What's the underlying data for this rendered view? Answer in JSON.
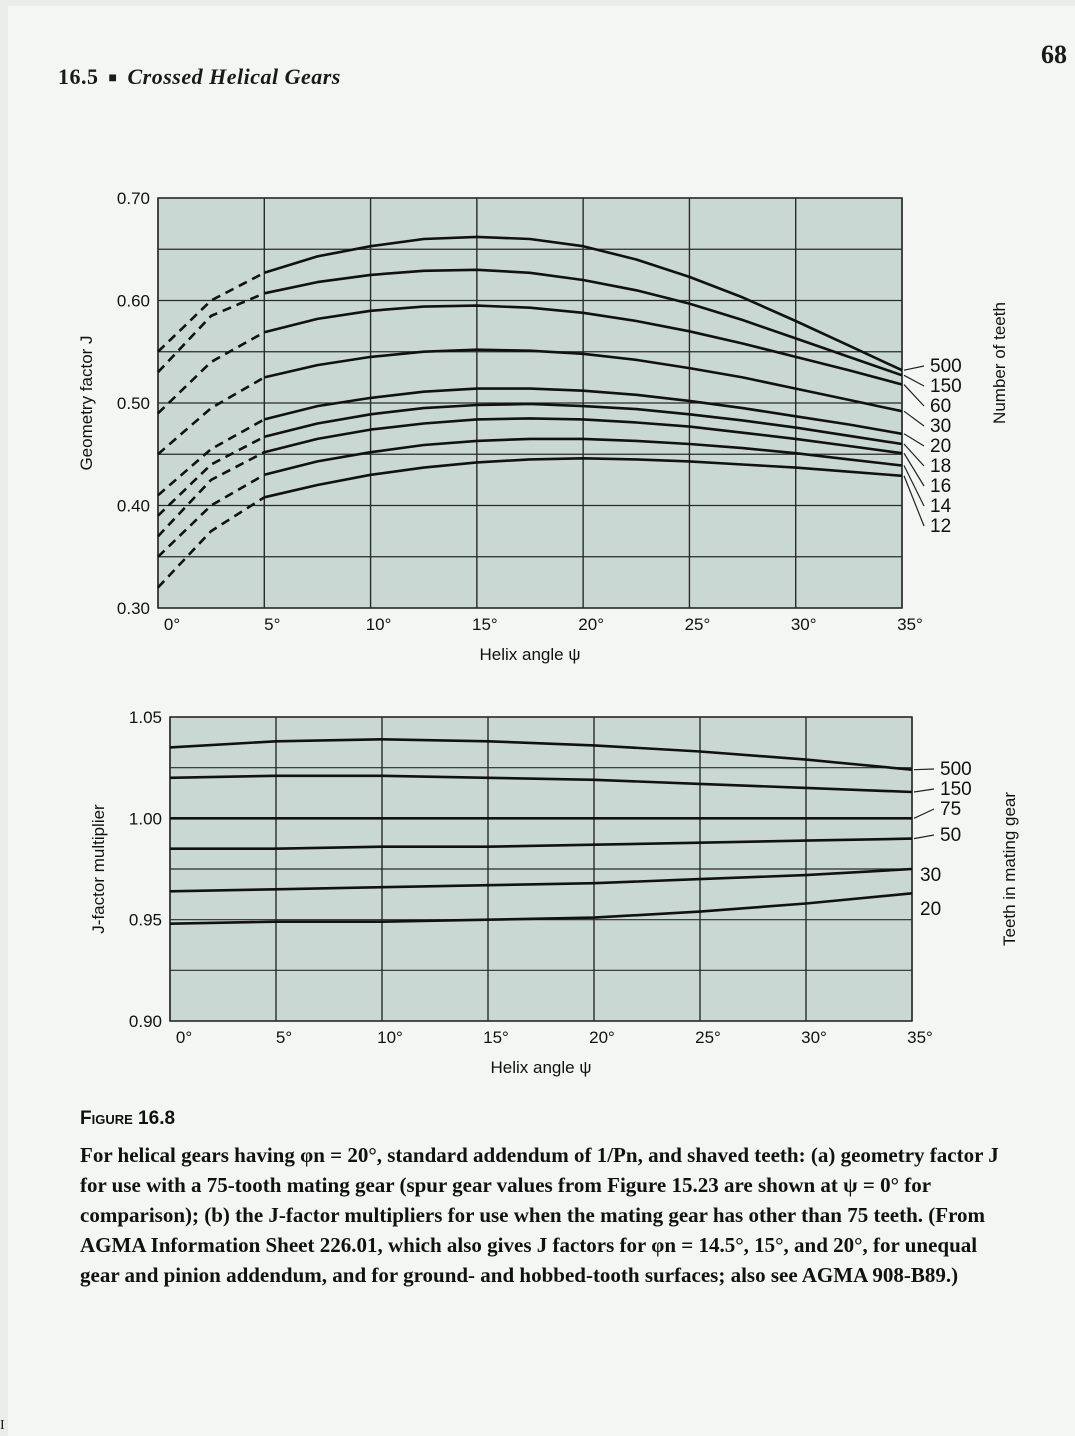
{
  "page": {
    "section_number": "16.5",
    "section_title": "Crossed Helical Gears",
    "page_number": "68",
    "corner_mark": "I"
  },
  "caption": {
    "label": "Figure 16.8",
    "text": "For helical gears having φn = 20°, standard addendum of 1/Pn, and shaved teeth: (a) geometry factor J for use with a 75-tooth mating gear (spur gear values from Figure 15.23 are shown at ψ = 0° for comparison); (b) the J-factor multipliers for use when the mating gear has other than 75 teeth. (From AGMA Information Sheet 226.01, which also gives J factors for φn = 14.5°, 15°, and 20°, for unequal gear and pinion addendum, and for ground- and hobbed-tooth surfaces; also see AGMA 908-B89.)"
  },
  "colors": {
    "plot_bg": "#c9d8d3",
    "grid": "#2a2a2a",
    "curve": "#111111"
  },
  "chart_data": [
    {
      "type": "line",
      "xlabel": "Helix angle ψ",
      "ylabel": "Geometry factor J",
      "right_label": "Number of teeth",
      "xlim": [
        0,
        35
      ],
      "ylim": [
        0.3,
        0.7
      ],
      "x_ticks": [
        0,
        5,
        10,
        15,
        20,
        25,
        30,
        35
      ],
      "x_tick_labels": [
        "0°",
        "5°",
        "10°",
        "15°",
        "20°",
        "25°",
        "30°",
        "35°"
      ],
      "y_ticks": [
        0.3,
        0.4,
        0.5,
        0.6,
        0.7
      ],
      "y_tick_labels": [
        "0.30",
        "0.40",
        "0.50",
        "0.60",
        "0.70"
      ],
      "grid": true,
      "dashed_start": 5,
      "x": [
        0,
        2.5,
        5,
        7.5,
        10,
        12.5,
        15,
        17.5,
        20,
        22.5,
        25,
        27.5,
        30,
        32.5,
        35
      ],
      "series": [
        {
          "name": "500",
          "values": [
            0.55,
            0.6,
            0.627,
            0.643,
            0.653,
            0.66,
            0.662,
            0.66,
            0.653,
            0.64,
            0.623,
            0.603,
            0.58,
            0.556,
            0.532
          ]
        },
        {
          "name": "150",
          "values": [
            0.53,
            0.585,
            0.607,
            0.618,
            0.625,
            0.629,
            0.63,
            0.627,
            0.62,
            0.61,
            0.597,
            0.581,
            0.563,
            0.545,
            0.527
          ]
        },
        {
          "name": "60",
          "values": [
            0.49,
            0.54,
            0.569,
            0.582,
            0.59,
            0.594,
            0.595,
            0.593,
            0.588,
            0.58,
            0.57,
            0.558,
            0.545,
            0.532,
            0.518
          ]
        },
        {
          "name": "30",
          "values": [
            0.45,
            0.495,
            0.525,
            0.537,
            0.545,
            0.55,
            0.552,
            0.551,
            0.548,
            0.542,
            0.534,
            0.525,
            0.514,
            0.503,
            0.492
          ]
        },
        {
          "name": "20",
          "values": [
            0.41,
            0.455,
            0.484,
            0.497,
            0.505,
            0.511,
            0.514,
            0.514,
            0.512,
            0.508,
            0.502,
            0.495,
            0.487,
            0.479,
            0.47
          ]
        },
        {
          "name": "18",
          "values": [
            0.39,
            0.44,
            0.467,
            0.48,
            0.489,
            0.495,
            0.498,
            0.499,
            0.497,
            0.494,
            0.489,
            0.483,
            0.476,
            0.468,
            0.46
          ]
        },
        {
          "name": "16",
          "values": [
            0.37,
            0.425,
            0.452,
            0.465,
            0.474,
            0.48,
            0.484,
            0.485,
            0.484,
            0.481,
            0.477,
            0.471,
            0.465,
            0.458,
            0.451
          ]
        },
        {
          "name": "14",
          "values": [
            0.35,
            0.4,
            0.43,
            0.443,
            0.452,
            0.459,
            0.463,
            0.465,
            0.465,
            0.463,
            0.46,
            0.456,
            0.451,
            0.445,
            0.439
          ]
        },
        {
          "name": "12",
          "values": [
            0.32,
            0.375,
            0.408,
            0.42,
            0.43,
            0.437,
            0.442,
            0.445,
            0.446,
            0.445,
            0.443,
            0.44,
            0.437,
            0.433,
            0.429
          ]
        }
      ]
    },
    {
      "type": "line",
      "xlabel": "Helix angle ψ",
      "ylabel": "J-factor multiplier",
      "right_label": "Teeth in mating gear",
      "xlim": [
        0,
        35
      ],
      "ylim": [
        0.9,
        1.05
      ],
      "x_ticks": [
        0,
        5,
        10,
        15,
        20,
        25,
        30,
        35
      ],
      "x_tick_labels": [
        "0°",
        "5°",
        "10°",
        "15°",
        "20°",
        "25°",
        "30°",
        "35°"
      ],
      "y_ticks": [
        0.9,
        0.95,
        1.0,
        1.05
      ],
      "y_tick_labels": [
        "0.90",
        "0.95",
        "1.00",
        "1.05"
      ],
      "grid": true,
      "x": [
        0,
        5,
        10,
        15,
        20,
        25,
        30,
        35
      ],
      "series": [
        {
          "name": "500",
          "values": [
            1.035,
            1.038,
            1.039,
            1.038,
            1.036,
            1.033,
            1.029,
            1.024
          ]
        },
        {
          "name": "150",
          "values": [
            1.02,
            1.021,
            1.021,
            1.02,
            1.019,
            1.017,
            1.015,
            1.013
          ]
        },
        {
          "name": "75",
          "values": [
            1.0,
            1.0,
            1.0,
            1.0,
            1.0,
            1.0,
            1.0,
            1.0
          ]
        },
        {
          "name": "50",
          "values": [
            0.985,
            0.985,
            0.986,
            0.986,
            0.987,
            0.988,
            0.989,
            0.99
          ]
        },
        {
          "name": "30",
          "values": [
            0.964,
            0.965,
            0.966,
            0.967,
            0.968,
            0.97,
            0.972,
            0.975
          ]
        },
        {
          "name": "20",
          "values": [
            0.948,
            0.949,
            0.949,
            0.95,
            0.951,
            0.954,
            0.958,
            0.963
          ]
        }
      ]
    }
  ]
}
